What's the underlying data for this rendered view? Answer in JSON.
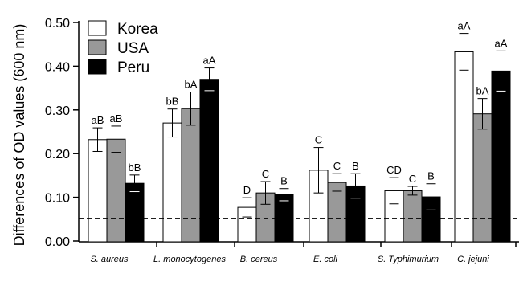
{
  "chart_data": {
    "type": "bar",
    "ylabel": "Differences of OD values (600 nm)",
    "ylim": [
      0,
      0.5
    ],
    "yticks": [
      "0.00",
      "0.10",
      "0.20",
      "0.30",
      "0.40",
      "0.50"
    ],
    "categories": [
      "S. aureus",
      "L. monocytogenes",
      "B. cereus",
      "E. coli",
      "S. Typhimurium",
      "C. jejuni"
    ],
    "reference_line": 0.052,
    "series": [
      {
        "name": "Korea",
        "color": "#ffffff",
        "values": [
          0.232,
          0.27,
          0.077,
          0.162,
          0.115,
          0.433
        ],
        "errors": [
          0.027,
          0.032,
          0.022,
          0.052,
          0.03,
          0.042
        ],
        "labels": [
          "aB",
          "bB",
          "D",
          "C",
          "CD",
          "aA"
        ]
      },
      {
        "name": "USA",
        "color": "#999999",
        "values": [
          0.233,
          0.303,
          0.11,
          0.134,
          0.115,
          0.291
        ],
        "errors": [
          0.03,
          0.038,
          0.026,
          0.02,
          0.01,
          0.035
        ],
        "labels": [
          "aB",
          "bA",
          "C",
          "C",
          "C",
          "bA"
        ]
      },
      {
        "name": "Peru",
        "color": "#000000",
        "values": [
          0.132,
          0.37,
          0.106,
          0.126,
          0.101,
          0.389
        ],
        "errors": [
          0.019,
          0.026,
          0.014,
          0.028,
          0.03,
          0.046
        ],
        "labels": [
          "bB",
          "aA",
          "B",
          "B",
          "B",
          "aA"
        ]
      }
    ],
    "legend_position": "top-left",
    "grid": false
  }
}
